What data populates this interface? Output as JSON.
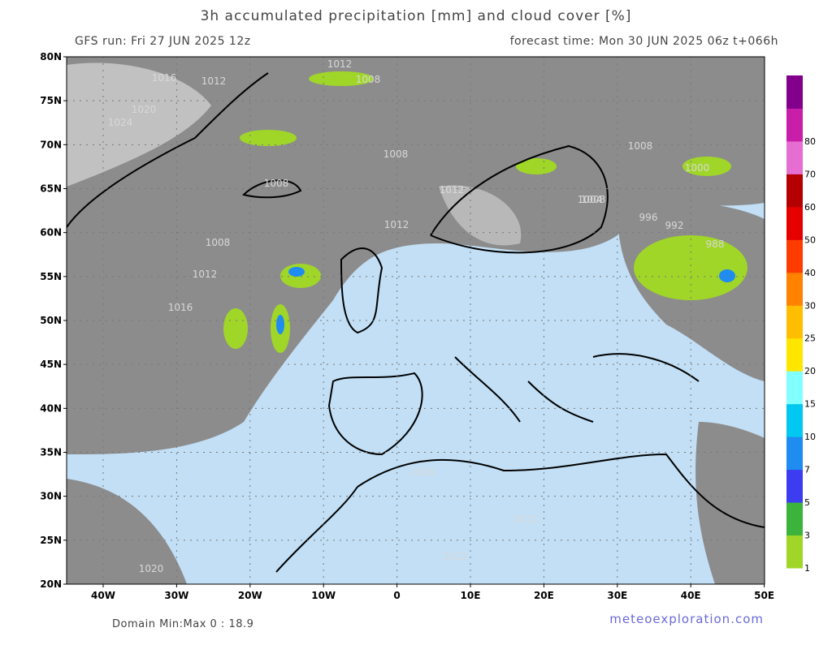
{
  "header": {
    "title": "3h accumulated precipitation [mm] and cloud cover [%]",
    "run": "GFS run: Fri 27 JUN 2025 12z",
    "forecast": "forecast time: Mon 30 JUN 2025 06z  t+066h"
  },
  "map": {
    "lat_labels": [
      "80N",
      "75N",
      "70N",
      "65N",
      "60N",
      "55N",
      "50N",
      "45N",
      "40N",
      "35N",
      "30N",
      "25N",
      "20N"
    ],
    "lon_labels": [
      "40W",
      "30W",
      "20W",
      "10W",
      "0",
      "10E",
      "20E",
      "30E",
      "40E",
      "50E"
    ],
    "isobars": [
      1012,
      1008,
      1016,
      1012,
      1020,
      1024,
      1008,
      1008,
      1008,
      1012,
      1012,
      1008,
      1004,
      1000,
      996,
      992,
      988,
      1008,
      1012,
      1016,
      1016,
      1012,
      1012,
      1020
    ]
  },
  "colorbar": {
    "labels": [
      "1",
      "3",
      "5",
      "7",
      "10",
      "15",
      "20",
      "25",
      "30",
      "40",
      "50",
      "60",
      "70",
      "80"
    ],
    "colors": [
      "#a0d628",
      "#3cb43c",
      "#3c3cf0",
      "#1e8cf0",
      "#00c8f0",
      "#82ffff",
      "#ffe600",
      "#ffbe00",
      "#ff8200",
      "#ff3c00",
      "#e60000",
      "#b40000",
      "#e66ed2",
      "#c81eaa",
      "#82008c"
    ]
  },
  "footer": {
    "domain": "Domain Min:Max 0 : 18.9",
    "credit": "meteoexploration.com"
  }
}
